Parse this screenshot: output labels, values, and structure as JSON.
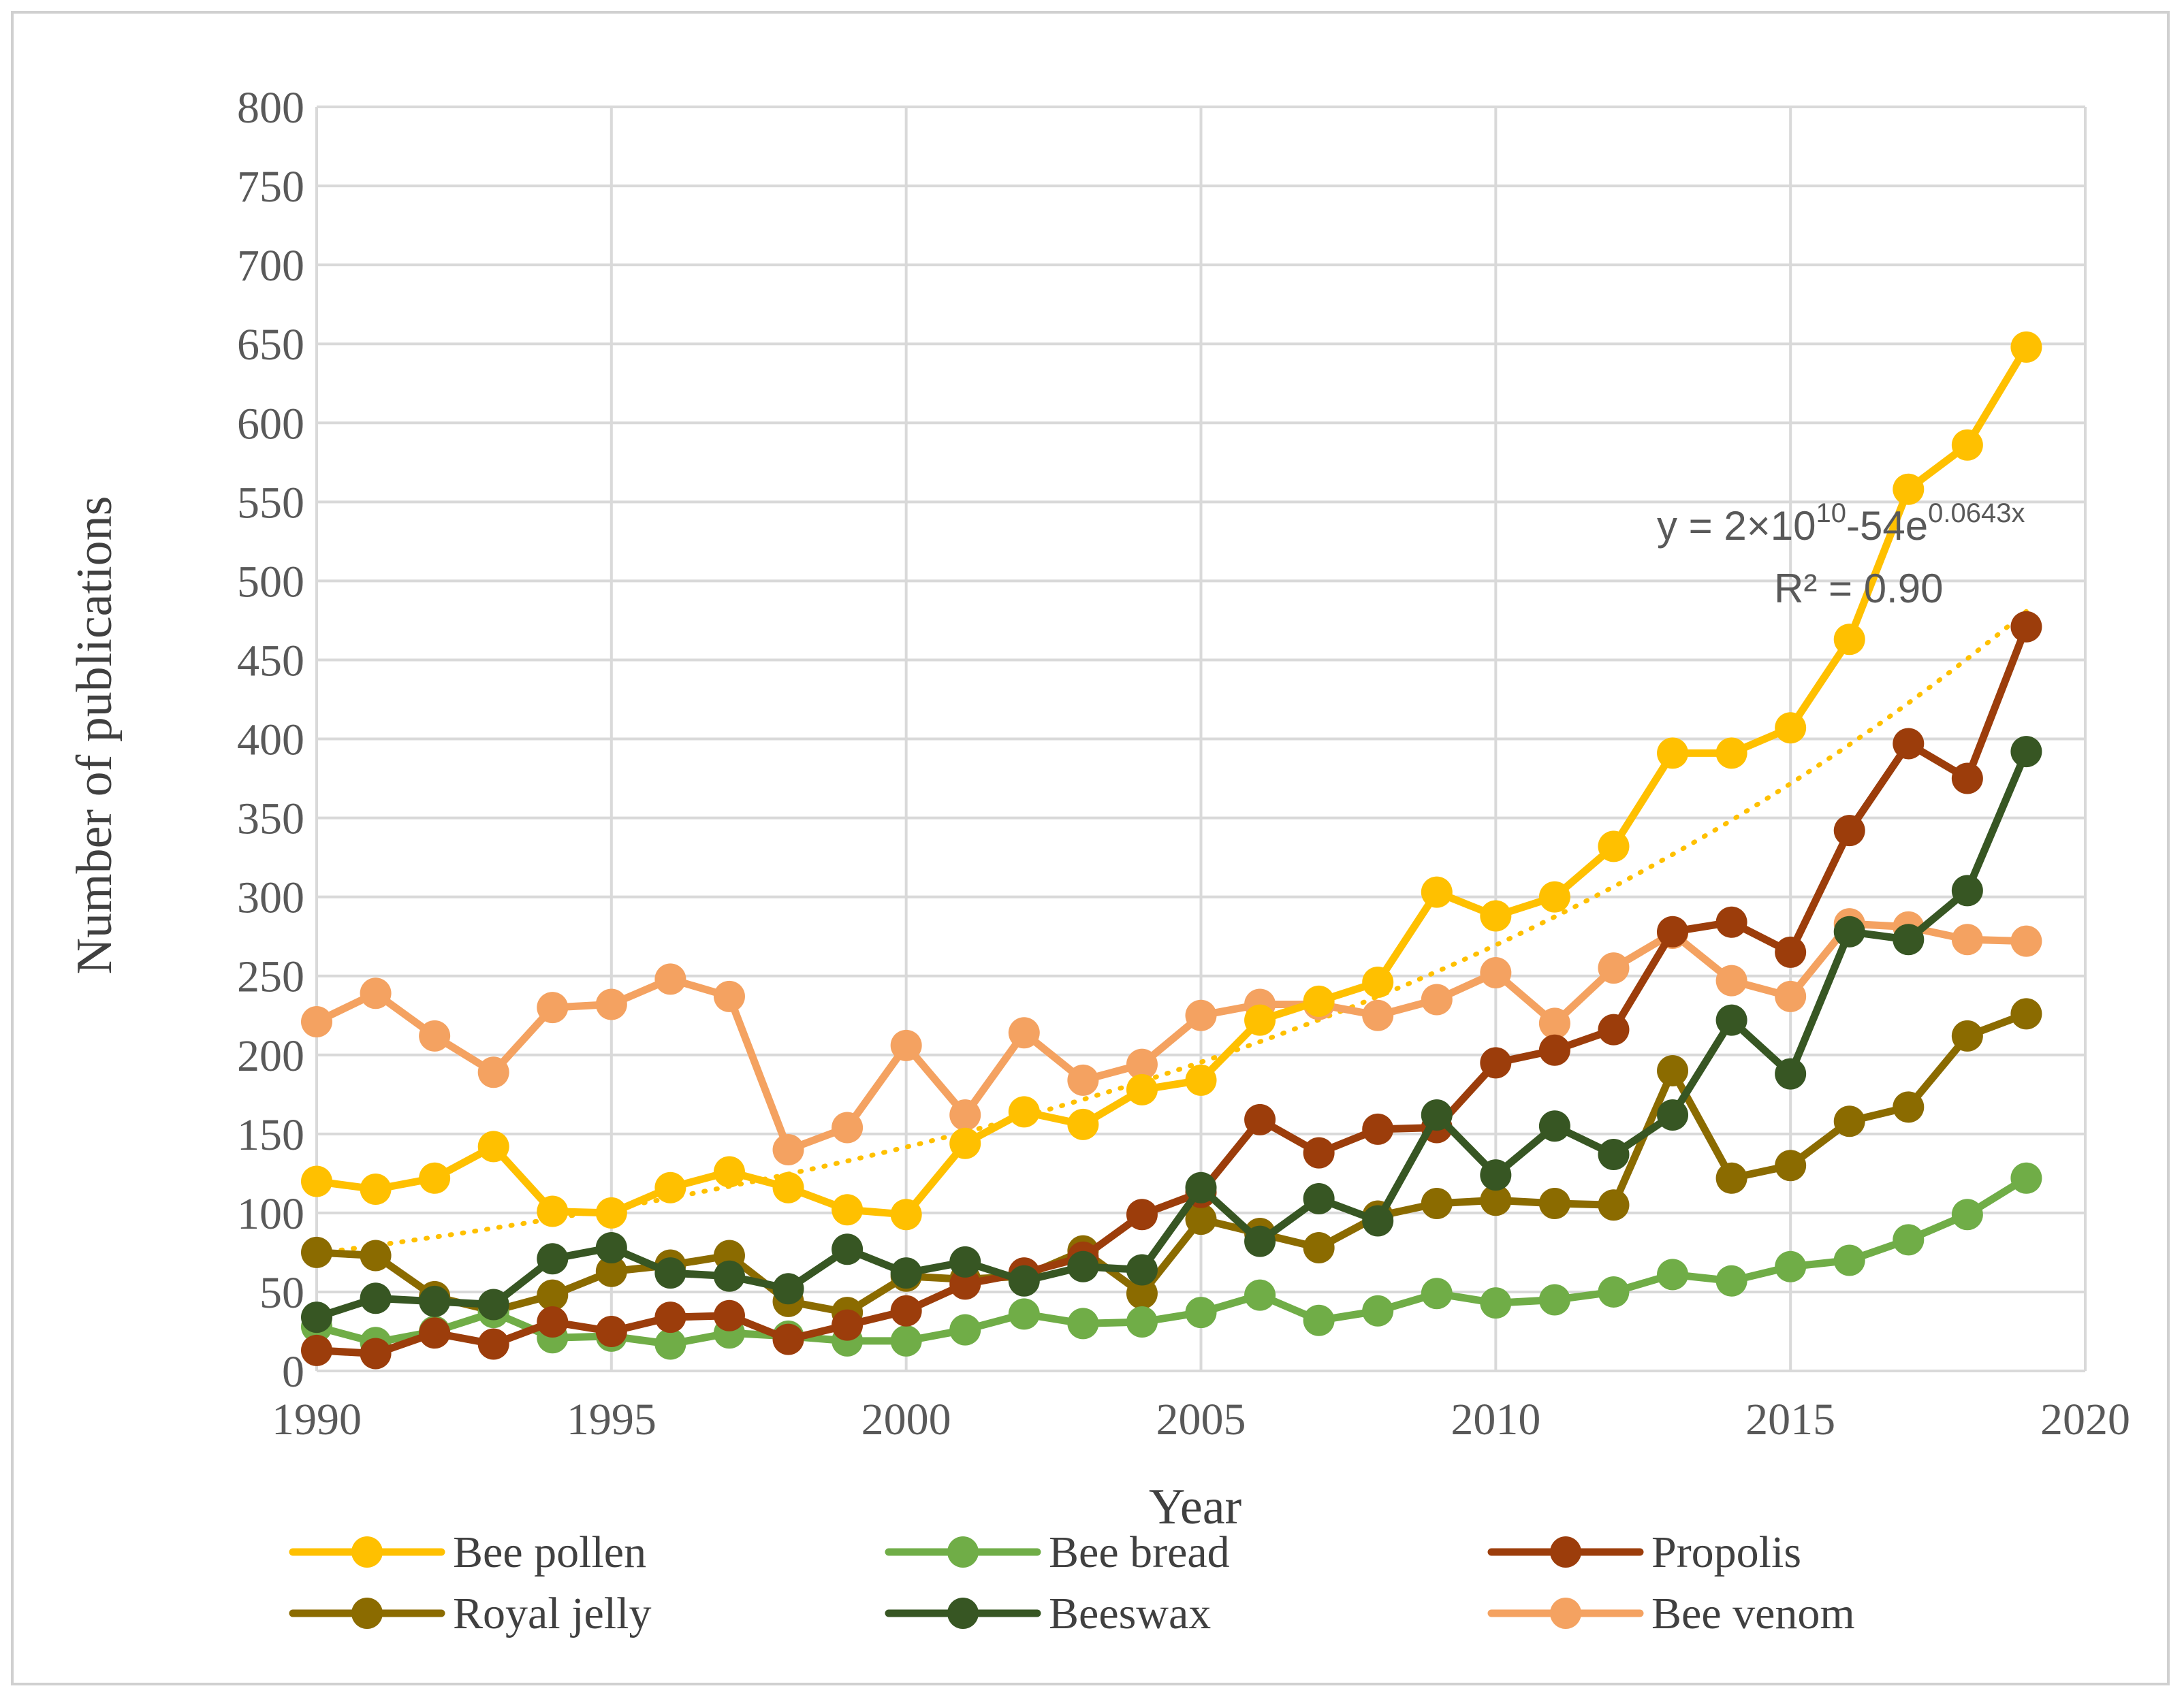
{
  "chart_data": {
    "type": "line",
    "xlabel": "Year",
    "ylabel": "Number of publications",
    "xlim": [
      1990,
      2020
    ],
    "ylim": [
      0,
      800
    ],
    "x_ticks": [
      1990,
      1995,
      2000,
      2005,
      2010,
      2015,
      2020
    ],
    "y_ticks": [
      0,
      50,
      100,
      150,
      200,
      250,
      300,
      350,
      400,
      450,
      500,
      550,
      600,
      650,
      700,
      750,
      800
    ],
    "grid": true,
    "legend_position": "bottom",
    "x": [
      1990,
      1991,
      1992,
      1993,
      1994,
      1995,
      1996,
      1997,
      1998,
      1999,
      2000,
      2001,
      2002,
      2003,
      2004,
      2005,
      2006,
      2007,
      2008,
      2009,
      2010,
      2011,
      2012,
      2013,
      2014,
      2015,
      2016,
      2017,
      2018,
      2019
    ],
    "series": [
      {
        "name": "Bee venom",
        "color": "#f4a261",
        "values": [
          221,
          239,
          212,
          189,
          230,
          232,
          248,
          237,
          140,
          154,
          206,
          162,
          214,
          184,
          194,
          225,
          232,
          232,
          225,
          235,
          252,
          220,
          255,
          277,
          247,
          237,
          283,
          281,
          273,
          272
        ]
      },
      {
        "name": "Royal jelly",
        "color": "#8b6b00",
        "values": [
          75,
          73,
          47,
          38,
          48,
          63,
          67,
          73,
          44,
          37,
          60,
          58,
          60,
          76,
          49,
          96,
          87,
          78,
          98,
          106,
          108,
          106,
          105,
          190,
          122,
          130,
          158,
          167,
          212,
          226
        ]
      },
      {
        "name": "Bee bread",
        "color": "#70ad47",
        "values": [
          28,
          18,
          25,
          37,
          21,
          22,
          17,
          24,
          22,
          19,
          19,
          26,
          36,
          30,
          31,
          37,
          48,
          32,
          38,
          49,
          43,
          45,
          50,
          61,
          57,
          66,
          70,
          83,
          99,
          122
        ]
      },
      {
        "name": "Propolis",
        "color": "#9c3d0b",
        "values": [
          13,
          11,
          24,
          17,
          31,
          25,
          34,
          35,
          20,
          29,
          38,
          55,
          62,
          72,
          99,
          113,
          159,
          138,
          153,
          154,
          195,
          203,
          216,
          278,
          284,
          265,
          342,
          397,
          375,
          471
        ]
      },
      {
        "name": "Beeswax",
        "color": "#375623",
        "values": [
          34,
          46,
          44,
          42,
          71,
          78,
          62,
          60,
          52,
          77,
          62,
          69,
          57,
          66,
          64,
          116,
          82,
          109,
          95,
          162,
          124,
          155,
          137,
          162,
          222,
          188,
          278,
          273,
          304,
          392
        ]
      },
      {
        "name": "Bee pollen",
        "color": "#ffc000",
        "values": [
          120,
          115,
          122,
          142,
          101,
          100,
          116,
          126,
          116,
          102,
          99,
          144,
          164,
          156,
          178,
          184,
          222,
          234,
          246,
          303,
          288,
          300,
          332,
          391,
          391,
          407,
          463,
          558,
          586,
          648
        ]
      }
    ],
    "legend_order": [
      "Bee pollen",
      "Bee bread",
      "Propolis",
      "Royal jelly",
      "Beeswax",
      "Bee venom"
    ],
    "trendline": {
      "series": "Bee pollen",
      "type": "exponential",
      "a": 2e-54,
      "b": 0.0643,
      "color": "#ffc000",
      "style": "dotted",
      "label_main": "y = 2×10",
      "label_exp1": "10",
      "label_mid": "-54e",
      "label_exp2": "0.0643x",
      "r2_label": "R² = 0.90"
    }
  }
}
